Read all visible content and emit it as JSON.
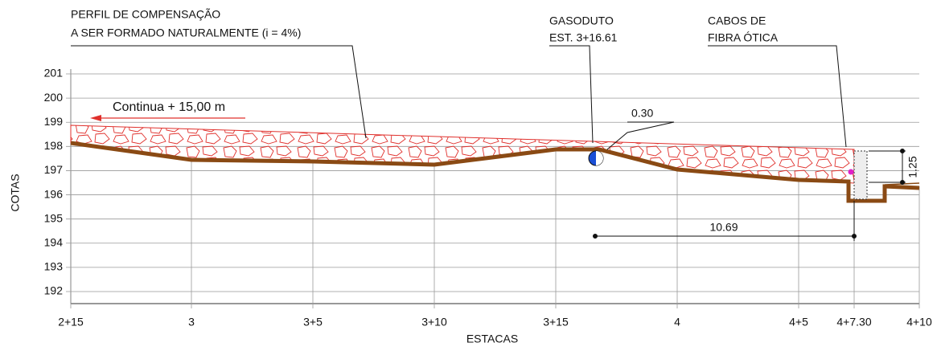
{
  "notes": {
    "fill_profile": {
      "line1": "PERFIL DE COMPENSAÇÃO",
      "line2": "A SER FORMADO NATURALMENTE (i = 4%)"
    },
    "gas_pipe": {
      "line1": "GASODUTO",
      "line2": "EST. 3+16.61"
    },
    "fiber_cables": {
      "line1": "CABOS DE",
      "line2": "FIBRA ÓTICA"
    },
    "continues": "Continua + 15,00 m"
  },
  "dimensions": {
    "cover": "0.30",
    "distance": "10.69",
    "height": "1.25"
  },
  "axes": {
    "y_label": "COTAS",
    "x_label": "ESTACAS",
    "y_ticks": [
      "201",
      "200",
      "199",
      "198",
      "197",
      "196",
      "195",
      "194",
      "193",
      "192"
    ],
    "x_ticks": [
      "2+15",
      "3",
      "3+5",
      "3+10",
      "3+15",
      "4",
      "4+5",
      "4+7.30",
      "4+10"
    ]
  }
}
